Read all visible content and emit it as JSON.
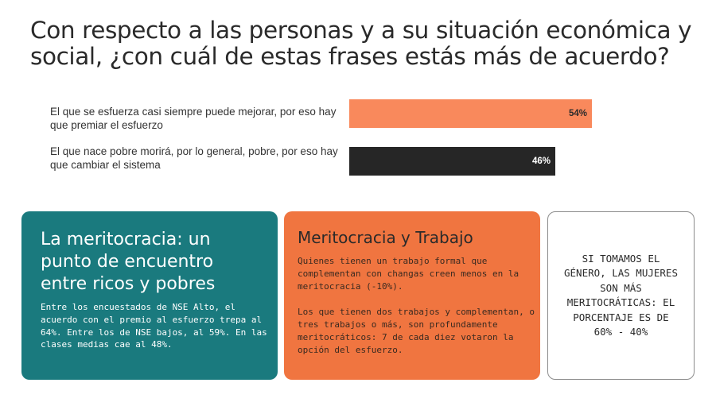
{
  "title": "Con respecto a las personas y a su situación económica y social, ¿con cuál de estas frases estás más de acuerdo?",
  "chart_data": {
    "type": "bar",
    "orientation": "horizontal",
    "categories": [
      "El que se esfuerza casi siempre puede mejorar, por eso hay que premiar el esfuerzo",
      "El que nace pobre morirá, por lo general, pobre, por eso hay que cambiar el sistema"
    ],
    "values": [
      54,
      46
    ],
    "value_labels": [
      "54%",
      "46%"
    ],
    "colors": [
      "#f9895c",
      "#262626"
    ],
    "xlim": [
      0,
      100
    ],
    "grid": false,
    "legend": "none"
  },
  "cards": {
    "teal": {
      "heading": "La meritocracia: un punto de encuentro entre ricos y pobres",
      "body": "Entre los encuestados de NSE Alto, el acuerdo con el premio al esfuerzo trepa al 64%. Entre los de NSE bajos, al 59%. En las clases medias cae al 48%.",
      "color": "#1a7a7e"
    },
    "orange": {
      "heading": "Meritocracia y Trabajo",
      "paragraph1": "Quienes tienen un trabajo formal que complementan con changas creen menos en la meritocracia (-10%).",
      "paragraph2": "Los que tienen dos trabajos y complementan, o tres trabajos o más, son profundamente meritocráticos: 7 de cada diez votaron la opción del esfuerzo.",
      "color": "#f07540"
    },
    "gray": {
      "text": "SI TOMAMOS EL GÉNERO, LAS MUJERES SON MÁS MERITOCRÁTICAS: EL PORCENTAJE ES DE 60% - 40%"
    }
  }
}
